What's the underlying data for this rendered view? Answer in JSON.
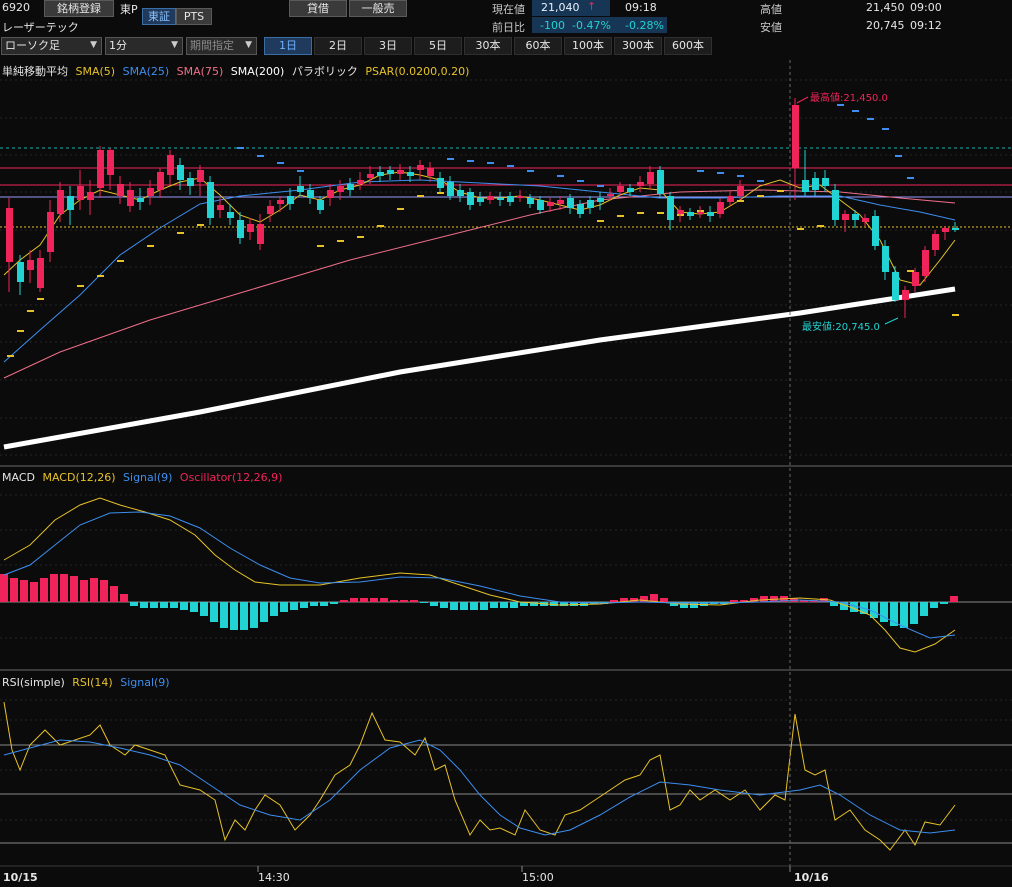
{
  "header": {
    "code": "6920",
    "register_label": "銘柄登録",
    "market": "東P",
    "exchange_tabs": [
      "東証",
      "PTS"
    ],
    "margin_label": "貸借",
    "general_label": "一般売",
    "name": "レーザーテック",
    "current_label": "現在値",
    "current_price": "21,040",
    "current_arrow": "↑",
    "current_time": "09:18",
    "change_label": "前日比",
    "change_value": "-100",
    "change_pct": "-0.47%",
    "change_pct2": "-0.28%",
    "high_label": "高値",
    "high_value": "21,450",
    "high_time": "09:00",
    "low_label": "安値",
    "low_value": "20,745",
    "low_time": "09:12"
  },
  "toolbar": {
    "chart_type": "ローソク足",
    "interval": "1分",
    "period": "期間指定",
    "ranges": [
      "1日",
      "2日",
      "3日",
      "5日",
      "30本",
      "60本",
      "100本",
      "300本",
      "600本"
    ],
    "active_range": "1日"
  },
  "price_panel": {
    "legend": {
      "title": "単純移動平均",
      "sma5": "SMA(5)",
      "sma25": "SMA(25)",
      "sma75": "SMA(75)",
      "sma200": "SMA(200)",
      "parabolic": "パラボリック",
      "psar": "PSAR(0.0200,0.20)"
    },
    "high_annotation": "最高値:21,450.0",
    "low_annotation": "最安値:20,745.0"
  },
  "macd_panel": {
    "legend": {
      "title": "MACD",
      "macd": "MACD(12,26)",
      "signal": "Signal(9)",
      "osc": "Oscillator(12,26,9)"
    }
  },
  "rsi_panel": {
    "legend": {
      "title": "RSI(simple)",
      "rsi": "RSI(14)",
      "signal": "Signal(9)"
    }
  },
  "time_axis": {
    "labels": [
      "10/15",
      "14:30",
      "15:00",
      "10/16"
    ]
  },
  "colors": {
    "background": "#0b0b0b",
    "up_candle": "#f0245a",
    "down_candle": "#22d3d3",
    "sma5": "#e6c229",
    "sma25": "#3d8ef0",
    "sma75": "#f06e8a",
    "sma200": "#ffffff",
    "psar": "#e6c229",
    "macd": "#e6c229",
    "signal": "#3d8ef0"
  }
}
